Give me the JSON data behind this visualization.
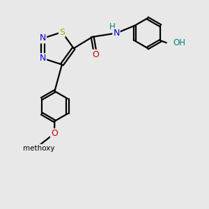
{
  "bg_color": "#e8e8e8",
  "bond_color": "#000000",
  "bond_width": 1.6,
  "dbo": 0.055,
  "fs": 9,
  "colors": {
    "N": "#0000cc",
    "S": "#aaaa00",
    "O_red": "#cc0000",
    "O_teal": "#008080",
    "H_teal": "#008080",
    "C": "#000000"
  },
  "xlim": [
    0,
    10
  ],
  "ylim": [
    0,
    10
  ],
  "figsize": [
    3.0,
    3.0
  ],
  "dpi": 100
}
